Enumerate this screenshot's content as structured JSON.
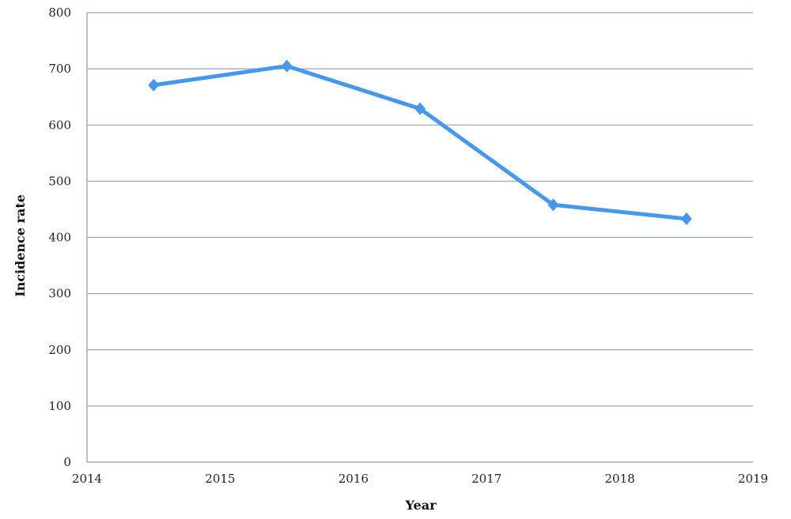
{
  "chart_data": {
    "type": "line",
    "xlabel": "Year",
    "ylabel": "Incidence rate",
    "xlim": [
      2014,
      2019
    ],
    "ylim": [
      0,
      800
    ],
    "x_ticks": [
      "2014",
      "2015",
      "2016",
      "2017",
      "2018",
      "2019"
    ],
    "y_ticks": [
      "0",
      "100",
      "200",
      "300",
      "400",
      "500",
      "600",
      "700",
      "800"
    ],
    "grid": "horizontal",
    "series": [
      {
        "x": [
          2014.5,
          2015.5,
          2016.5,
          2017.5,
          2018.5
        ],
        "y": [
          671,
          705,
          629,
          458,
          433
        ],
        "color": "#4499ee",
        "marker": "diamond"
      }
    ]
  },
  "colors": {
    "line": "#4499ee",
    "grid": "#9aa9b8",
    "axis": "#8c9bab"
  }
}
